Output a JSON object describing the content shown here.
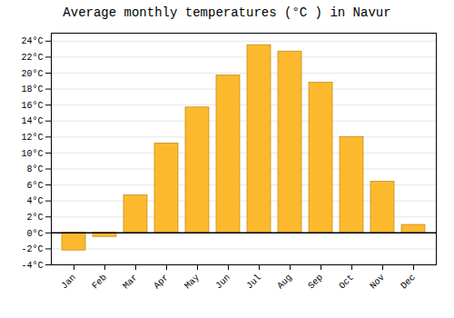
{
  "chart_data": {
    "type": "bar",
    "title": "Average monthly temperatures (°C ) in Navur",
    "categories": [
      "Jan",
      "Feb",
      "Mar",
      "Apr",
      "May",
      "Jun",
      "Jul",
      "Aug",
      "Sep",
      "Oct",
      "Nov",
      "Dec"
    ],
    "values": [
      -2.2,
      -0.5,
      4.7,
      11.2,
      15.7,
      19.7,
      23.5,
      22.7,
      18.8,
      12.0,
      6.4,
      1.0
    ],
    "color": "#FDB92E",
    "ylim": [
      -4,
      25
    ],
    "yticks": [
      {
        "value": -4,
        "label": "-4°C"
      },
      {
        "value": -2,
        "label": "-2°C"
      },
      {
        "value": 0,
        "label": "0°C"
      },
      {
        "value": 2,
        "label": "2°C"
      },
      {
        "value": 4,
        "label": "4°C"
      },
      {
        "value": 6,
        "label": "6°C"
      },
      {
        "value": 8,
        "label": "8°C"
      },
      {
        "value": 10,
        "label": "10°C"
      },
      {
        "value": 12,
        "label": "12°C"
      },
      {
        "value": 14,
        "label": "14°C"
      },
      {
        "value": 16,
        "label": "16°C"
      },
      {
        "value": 18,
        "label": "18°C"
      },
      {
        "value": 20,
        "label": "20°C"
      },
      {
        "value": 22,
        "label": "22°C"
      },
      {
        "value": 24,
        "label": "24°C"
      }
    ],
    "grid": true
  }
}
